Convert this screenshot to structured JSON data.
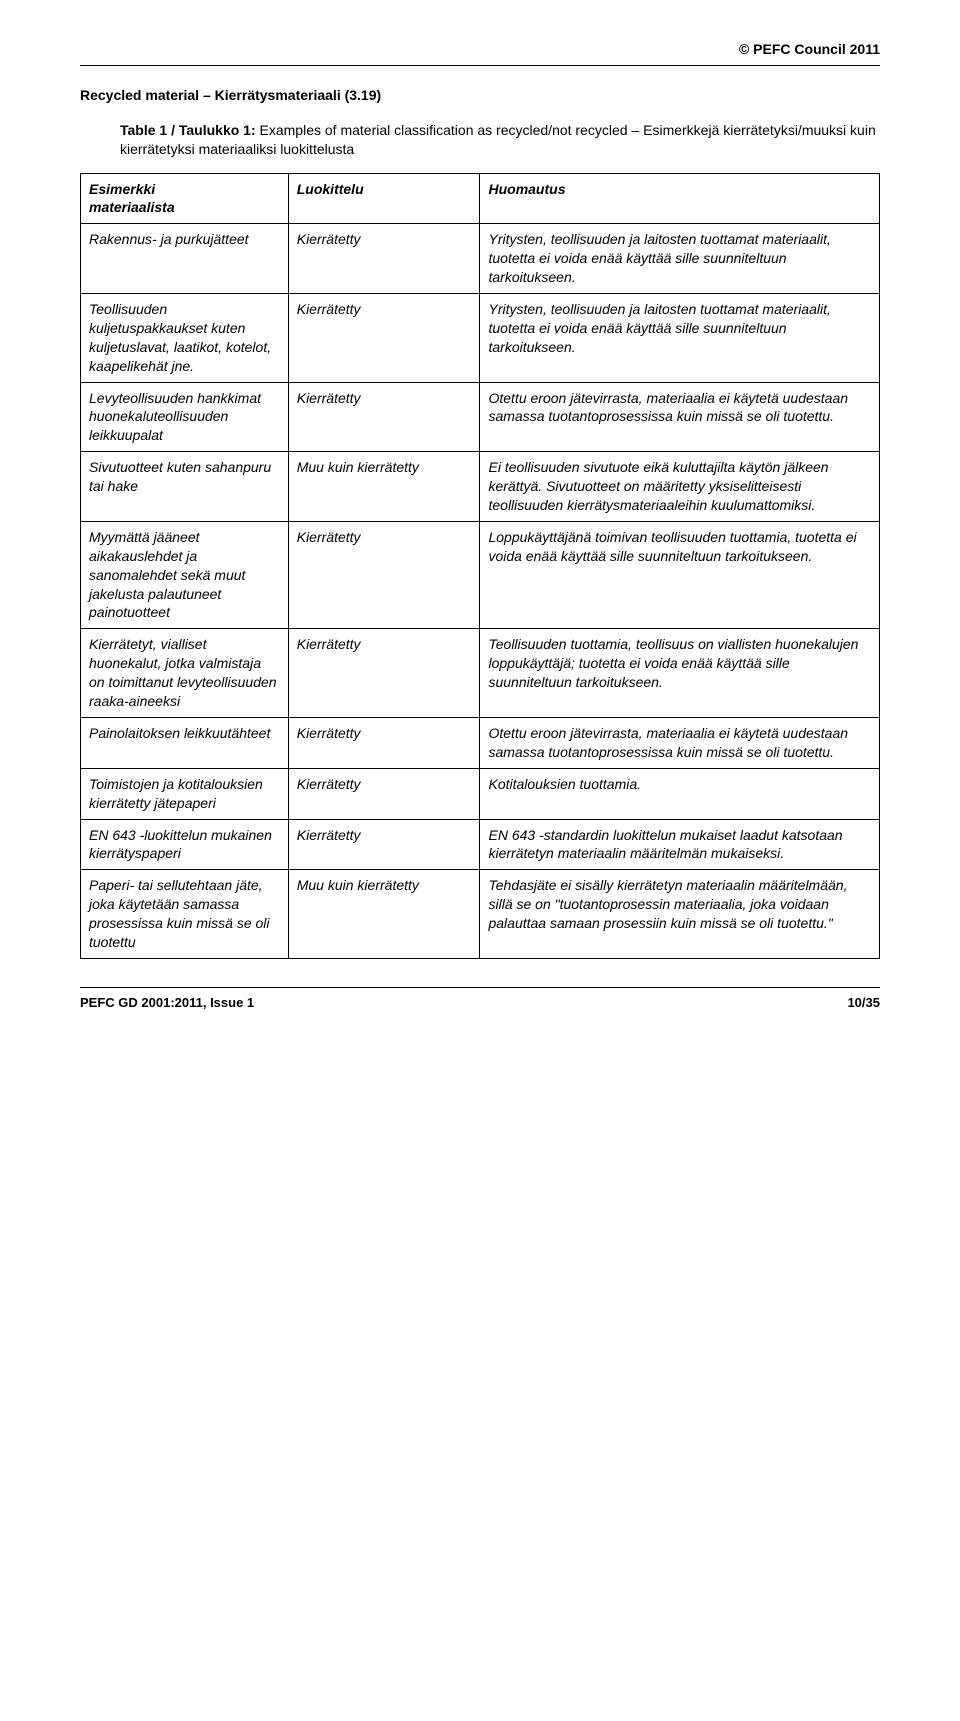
{
  "copyright": "© PEFC Council 2011",
  "section_title": "Recycled material – Kierrätysmateriaali (3.19)",
  "caption_prefix": "Table 1 / Taulukko 1: ",
  "caption_body": "Examples of material classification as recycled/not recycled – Esimerkkejä kierrätetyksi/muuksi kuin kierrätetyksi materiaaliksi luokittelusta",
  "headers": {
    "col1_en": "Esimerkki",
    "col1_fi": "materiaalista",
    "col2_en": "Luokittelu",
    "col3_en": "Huomautus"
  },
  "rows": [
    {
      "example": "Rakennus- ja purkujätteet",
      "class": "Kierrätetty",
      "note": "Yritysten, teollisuuden ja laitosten tuottamat materiaalit, tuotetta ei voida enää käyttää sille suunniteltuun tarkoitukseen."
    },
    {
      "example": "Teollisuuden kuljetuspakkaukset kuten kuljetuslavat, laatikot, kotelot, kaapelikehät jne.",
      "class": "Kierrätetty",
      "note": "Yritysten, teollisuuden ja laitosten tuottamat materiaalit, tuotetta ei voida enää käyttää sille suunniteltuun tarkoitukseen."
    },
    {
      "example": "Levyteollisuuden hankkimat huonekaluteollisuuden leikkuupalat",
      "class": "Kierrätetty",
      "note": "Otettu eroon jätevirrasta, materiaalia ei käytetä uudestaan samassa tuotantoprosessissa kuin missä se oli tuotettu."
    },
    {
      "example": "Sivutuotteet kuten sahanpuru tai hake",
      "class": "Muu kuin kierrätetty",
      "note": "Ei teollisuuden sivutuote eikä kuluttajilta käytön jälkeen kerättyä. Sivutuotteet on määritetty yksiselitteisesti teollisuuden kierrätysmateriaaleihin kuulumattomiksi."
    },
    {
      "example": "Myymättä jääneet aikakauslehdet ja sanomalehdet sekä muut jakelusta palautuneet painotuotteet",
      "class": "Kierrätetty",
      "note": "Loppukäyttäjänä toimivan teollisuuden tuottamia, tuotetta ei voida enää käyttää sille suunniteltuun tarkoitukseen."
    },
    {
      "example": "Kierrätetyt, vialliset huonekalut, jotka valmistaja on toimittanut levyteollisuuden raaka-aineeksi",
      "class": "Kierrätetty",
      "note": "Teollisuuden tuottamia, teollisuus on viallisten huonekalujen loppukäyttäjä; tuotetta ei voida enää käyttää sille suunniteltuun tarkoitukseen."
    },
    {
      "example": "Painolaitoksen leikkuutähteet",
      "class": "Kierrätetty",
      "note": "Otettu eroon jätevirrasta, materiaalia ei käytetä uudestaan samassa tuotantoprosessissa kuin missä se oli tuotettu."
    },
    {
      "example": "Toimistojen ja kotitalouksien kierrätetty jätepaperi",
      "class": "Kierrätetty",
      "note": "Kotitalouksien tuottamia."
    },
    {
      "example": "EN 643 -luokittelun mukainen kierrätyspaperi",
      "class": "Kierrätetty",
      "note": "EN 643 -standardin luokittelun mukaiset laadut katsotaan kierrätetyn materiaalin määritelmän mukaiseksi."
    },
    {
      "example": "Paperi- tai sellutehtaan jäte, joka käytetään samassa prosessissa kuin missä se oli tuotettu",
      "class": "Muu kuin kierrätetty",
      "note": "Tehdasjäte ei sisälly kierrätetyn materiaalin määritelmään, sillä se on \"tuotantoprosessin materiaalia, joka voidaan palauttaa samaan prosessiin kuin missä se oli tuotettu.\""
    }
  ],
  "footer": {
    "left": "PEFC GD 2001:2011, Issue 1",
    "right": "10/35"
  }
}
